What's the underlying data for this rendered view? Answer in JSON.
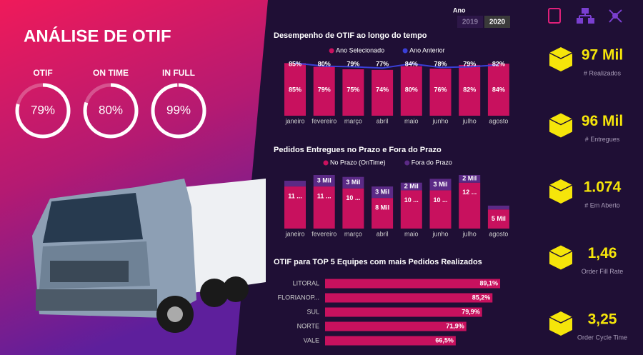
{
  "header": {
    "title": "ANÁLISE DE OTIF"
  },
  "gauges": [
    {
      "label": "OTIF",
      "value": 79,
      "value_label": "79%"
    },
    {
      "label": "ON TIME",
      "value": 80,
      "value_label": "80%"
    },
    {
      "label": "IN FULL",
      "value": 99,
      "value_label": "99%"
    }
  ],
  "slicer": {
    "title": "Ano",
    "options": [
      "2019",
      "2020"
    ],
    "selected": 1
  },
  "chart_data": [
    {
      "type": "bar_line",
      "title": "Desempenho de OTIF ao longo do tempo",
      "categories": [
        "janeiro",
        "fevereiro",
        "março",
        "abril",
        "maio",
        "junho",
        "julho",
        "agosto"
      ],
      "series": [
        {
          "name": "Ano Selecionado",
          "color": "#c8115e",
          "kind": "bar",
          "values": [
            85,
            79,
            75,
            74,
            80,
            76,
            82,
            84
          ],
          "value_labels": [
            "85%",
            "79%",
            "75%",
            "74%",
            "80%",
            "76%",
            "82%",
            "84%"
          ]
        },
        {
          "name": "Ano Anterior",
          "color": "#3a3fd6",
          "kind": "line",
          "values": [
            85,
            80,
            79,
            77,
            84,
            78,
            79,
            82
          ],
          "value_labels": [
            "85%",
            "80%",
            "79%",
            "77%",
            "84%",
            "78%",
            "79%",
            "82%"
          ]
        }
      ],
      "ylim": [
        0,
        90
      ]
    },
    {
      "type": "stacked_bar",
      "title": "Pedidos Entregues no Prazo e Fora do Prazo",
      "categories": [
        "janeiro",
        "fevereiro",
        "março",
        "abril",
        "maio",
        "junho",
        "julho",
        "agosto"
      ],
      "series": [
        {
          "name": "No Prazo (OnTime)",
          "color": "#c8115e",
          "values": [
            11000,
            11000,
            10500,
            8000,
            10000,
            10000,
            12000,
            5000
          ],
          "value_labels": [
            "11 ...",
            "11 ...",
            "10 ...",
            "8 Mil",
            "10 ...",
            "10 ...",
            "12 ...",
            "5 Mil"
          ]
        },
        {
          "name": "Fora do Prazo",
          "color": "#5b2a86",
          "values": [
            1500,
            3000,
            3000,
            3000,
            2000,
            3000,
            2000,
            1000
          ],
          "value_labels": [
            null,
            "3 Mil",
            "3 Mil",
            "3 Mil",
            "2 Mil",
            "3 Mil",
            "2 Mil",
            null
          ]
        }
      ],
      "ylim": [
        0,
        14000
      ]
    },
    {
      "type": "hbar",
      "title": "OTIF para TOP 5 Equipes com mais Pedidos Realizados",
      "categories": [
        "LITORAL",
        "FLORIANOP...",
        "SUL",
        "NORTE",
        "VALE"
      ],
      "values": [
        89.1,
        85.2,
        79.9,
        71.9,
        66.5
      ],
      "value_labels": [
        "89,1%",
        "85,2%",
        "79,9%",
        "71,9%",
        "66,5%"
      ],
      "color": "#c8115e",
      "xlim": [
        0,
        100
      ]
    }
  ],
  "kpis": [
    {
      "value": "97 Mil",
      "label": "# Realizados"
    },
    {
      "value": "96 Mil",
      "label": "# Entregues"
    },
    {
      "value": "1.074",
      "label": "# Em Aberto"
    },
    {
      "value": "1,46",
      "label": "Order Fill Rate"
    },
    {
      "value": "3,25",
      "label": "Order Cycle Time"
    }
  ]
}
